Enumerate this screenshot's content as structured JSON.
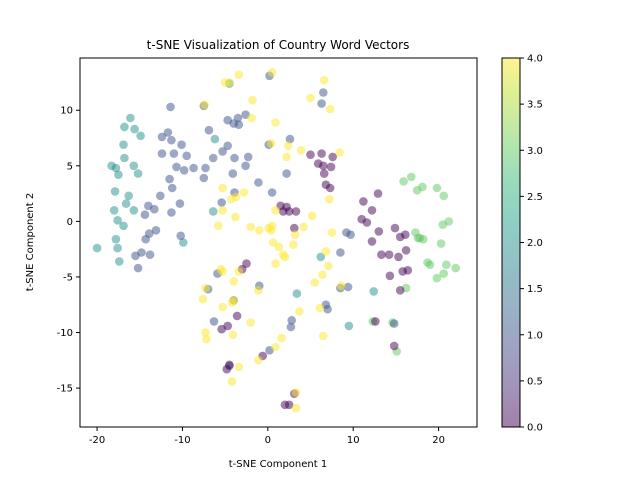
{
  "chart_data": {
    "type": "scatter",
    "title": "t-SNE Visualization of Country Word Vectors",
    "xlabel": "t-SNE Component 1",
    "ylabel": "t-SNE Component 2",
    "xlim": [
      -22,
      24.5
    ],
    "ylim": [
      -18.5,
      14.7
    ],
    "xticks": [
      -20,
      -10,
      0,
      10,
      20
    ],
    "yticks": [
      -15,
      -10,
      -5,
      0,
      5,
      10
    ],
    "colormap": "viridis",
    "alpha": 0.5,
    "grid": false,
    "legend": "none",
    "colorbar": {
      "label": "",
      "range": [
        0,
        4
      ],
      "ticks": [
        "0.0",
        "0.5",
        "1.0",
        "1.5",
        "2.0",
        "2.5",
        "3.0",
        "3.5",
        "4.0"
      ],
      "colors": [
        "#440154",
        "#482878",
        "#3e4989",
        "#31688e",
        "#26828e",
        "#1f9e89",
        "#35b779",
        "#6ece58",
        "#b5de2b",
        "#fde725"
      ]
    },
    "points": [
      {
        "x": -20.0,
        "y": -2.4,
        "c": 2
      },
      {
        "x": -18.3,
        "y": 5.0,
        "c": 2
      },
      {
        "x": -17.8,
        "y": 4.8,
        "c": 2
      },
      {
        "x": -17.5,
        "y": 4.2,
        "c": 2
      },
      {
        "x": -17.9,
        "y": 2.7,
        "c": 2
      },
      {
        "x": -18.0,
        "y": 1.0,
        "c": 2
      },
      {
        "x": -17.6,
        "y": 0.1,
        "c": 2
      },
      {
        "x": -16.9,
        "y": -0.4,
        "c": 2
      },
      {
        "x": -16.6,
        "y": 1.6,
        "c": 2
      },
      {
        "x": -16.3,
        "y": 2.3,
        "c": 2
      },
      {
        "x": -15.7,
        "y": 1.0,
        "c": 2
      },
      {
        "x": -16.8,
        "y": 5.7,
        "c": 2
      },
      {
        "x": -16.9,
        "y": 6.9,
        "c": 2
      },
      {
        "x": -16.8,
        "y": 8.5,
        "c": 2
      },
      {
        "x": -16.1,
        "y": 9.3,
        "c": 2
      },
      {
        "x": -15.6,
        "y": 8.3,
        "c": 2
      },
      {
        "x": -14.9,
        "y": 7.7,
        "c": 2
      },
      {
        "x": -15.7,
        "y": 5.0,
        "c": 2
      },
      {
        "x": -15.2,
        "y": 4.3,
        "c": 2
      },
      {
        "x": -17.8,
        "y": -1.6,
        "c": 2
      },
      {
        "x": -17.6,
        "y": -2.4,
        "c": 2
      },
      {
        "x": -17.4,
        "y": -3.6,
        "c": 2
      },
      {
        "x": -9.9,
        "y": -1.9,
        "c": 2
      },
      {
        "x": -6.2,
        "y": 7.4,
        "c": 2
      },
      {
        "x": -6.4,
        "y": 0.9,
        "c": 2
      },
      {
        "x": -4.5,
        "y": 12.4,
        "c": 2
      },
      {
        "x": 3.4,
        "y": -6.5,
        "c": 2
      },
      {
        "x": 6.2,
        "y": -3.2,
        "c": 2
      },
      {
        "x": 9.5,
        "y": -9.4,
        "c": 2
      },
      {
        "x": 12.4,
        "y": -6.3,
        "c": 2
      },
      {
        "x": 15.1,
        "y": -11.7,
        "c": 3
      },
      {
        "x": 14.6,
        "y": -9.1,
        "c": 3
      },
      {
        "x": 12.3,
        "y": -9.0,
        "c": 3
      },
      {
        "x": 16.8,
        "y": 4.0,
        "c": 3
      },
      {
        "x": 15.9,
        "y": 3.6,
        "c": 3
      },
      {
        "x": 17.5,
        "y": 2.8,
        "c": 3
      },
      {
        "x": 18.1,
        "y": 3.1,
        "c": 3
      },
      {
        "x": 19.8,
        "y": 3.0,
        "c": 3
      },
      {
        "x": 20.6,
        "y": 2.3,
        "c": 3
      },
      {
        "x": 21.2,
        "y": 0.0,
        "c": 3
      },
      {
        "x": 20.5,
        "y": -0.3,
        "c": 3
      },
      {
        "x": 17.3,
        "y": -1.0,
        "c": 3
      },
      {
        "x": 18.2,
        "y": -1.6,
        "c": 3
      },
      {
        "x": 17.8,
        "y": -1.5,
        "c": 3
      },
      {
        "x": 20.3,
        "y": -2.0,
        "c": 3
      },
      {
        "x": 18.7,
        "y": -3.7,
        "c": 3
      },
      {
        "x": 19.0,
        "y": -3.9,
        "c": 3
      },
      {
        "x": 20.9,
        "y": -3.9,
        "c": 3
      },
      {
        "x": 22.0,
        "y": -4.2,
        "c": 3
      },
      {
        "x": 20.6,
        "y": -4.7,
        "c": 3
      },
      {
        "x": 19.8,
        "y": -5.1,
        "c": 3
      },
      {
        "x": 16.2,
        "y": -6.0,
        "c": 3
      },
      {
        "x": 17.6,
        "y": -1.5,
        "c": 3
      },
      {
        "x": -14.8,
        "y": -2.8,
        "c": 1
      },
      {
        "x": -14.3,
        "y": -1.6,
        "c": 1
      },
      {
        "x": -13.9,
        "y": -1.1,
        "c": 1
      },
      {
        "x": -13.1,
        "y": -0.8,
        "c": 1
      },
      {
        "x": -14.4,
        "y": 0.6,
        "c": 1
      },
      {
        "x": -14.0,
        "y": 1.4,
        "c": 1
      },
      {
        "x": -13.3,
        "y": 1.1,
        "c": 1
      },
      {
        "x": -12.6,
        "y": 2.3,
        "c": 1
      },
      {
        "x": -11.5,
        "y": 3.8,
        "c": 1
      },
      {
        "x": -11.2,
        "y": 3.0,
        "c": 1
      },
      {
        "x": -11.3,
        "y": 0.8,
        "c": 1
      },
      {
        "x": -10.2,
        "y": -1.3,
        "c": 1
      },
      {
        "x": -12.4,
        "y": 6.1,
        "c": 1
      },
      {
        "x": -11.0,
        "y": 6.1,
        "c": 1
      },
      {
        "x": -11.3,
        "y": 7.3,
        "c": 1
      },
      {
        "x": -10.1,
        "y": 6.9,
        "c": 1
      },
      {
        "x": -9.5,
        "y": 5.9,
        "c": 1
      },
      {
        "x": -10.7,
        "y": 4.9,
        "c": 1
      },
      {
        "x": -9.8,
        "y": 4.6,
        "c": 1
      },
      {
        "x": -8.7,
        "y": 4.8,
        "c": 1
      },
      {
        "x": -12.4,
        "y": 7.6,
        "c": 1
      },
      {
        "x": -11.7,
        "y": 8.0,
        "c": 1
      },
      {
        "x": -11.4,
        "y": 10.3,
        "c": 1
      },
      {
        "x": -7.5,
        "y": 10.4,
        "c": 1
      },
      {
        "x": -6.9,
        "y": 8.2,
        "c": 1
      },
      {
        "x": -4.7,
        "y": 9.1,
        "c": 1
      },
      {
        "x": -4.0,
        "y": 8.8,
        "c": 1
      },
      {
        "x": -3.5,
        "y": 9.3,
        "c": 1
      },
      {
        "x": -3.4,
        "y": 8.7,
        "c": 1
      },
      {
        "x": -2.6,
        "y": 9.6,
        "c": 1
      },
      {
        "x": -5.3,
        "y": 6.3,
        "c": 1
      },
      {
        "x": -4.7,
        "y": 6.8,
        "c": 1
      },
      {
        "x": -3.9,
        "y": 5.7,
        "c": 1
      },
      {
        "x": -2.3,
        "y": 5.8,
        "c": 1
      },
      {
        "x": -2.6,
        "y": 5.0,
        "c": 1
      },
      {
        "x": -4.1,
        "y": 4.3,
        "c": 1
      },
      {
        "x": -3.9,
        "y": 2.6,
        "c": 1
      },
      {
        "x": -5.4,
        "y": 1.7,
        "c": 1
      },
      {
        "x": -6.4,
        "y": 5.7,
        "c": 1
      },
      {
        "x": -7.3,
        "y": 4.8,
        "c": 1
      },
      {
        "x": -7.5,
        "y": 3.9,
        "c": 1
      },
      {
        "x": -13.8,
        "y": -3.0,
        "c": 1
      },
      {
        "x": -15.2,
        "y": -4.2,
        "c": 1
      },
      {
        "x": -15.5,
        "y": -3.1,
        "c": 1
      },
      {
        "x": -10.3,
        "y": 1.6,
        "c": 1
      },
      {
        "x": -1.1,
        "y": 3.5,
        "c": 1
      },
      {
        "x": 0.5,
        "y": 2.6,
        "c": 1
      },
      {
        "x": 0.1,
        "y": 6.9,
        "c": 1
      },
      {
        "x": 2.6,
        "y": 7.4,
        "c": 1
      },
      {
        "x": 2.2,
        "y": 4.3,
        "c": 1
      },
      {
        "x": 0.2,
        "y": 13.1,
        "c": 1
      },
      {
        "x": 6.5,
        "y": 11.6,
        "c": 1
      },
      {
        "x": 6.3,
        "y": 10.6,
        "c": 1
      },
      {
        "x": 9.2,
        "y": -1.0,
        "c": 1
      },
      {
        "x": 9.7,
        "y": -1.2,
        "c": 1
      },
      {
        "x": 8.5,
        "y": -2.8,
        "c": 1
      },
      {
        "x": 6.8,
        "y": -7.5,
        "c": 1
      },
      {
        "x": 7.0,
        "y": -7.9,
        "c": 1
      },
      {
        "x": 9.4,
        "y": -5.9,
        "c": 1
      },
      {
        "x": 8.5,
        "y": -6.0,
        "c": 1
      },
      {
        "x": 2.8,
        "y": -8.9,
        "c": 1
      },
      {
        "x": 2.7,
        "y": -9.5,
        "c": 1
      },
      {
        "x": 0.2,
        "y": -11.6,
        "c": 1
      },
      {
        "x": -1.0,
        "y": -5.8,
        "c": 1
      },
      {
        "x": -5.9,
        "y": -4.7,
        "c": 1
      },
      {
        "x": -7.0,
        "y": -6.1,
        "c": 1
      },
      {
        "x": -6.3,
        "y": -9.0,
        "c": 1
      },
      {
        "x": -4.5,
        "y": -13.0,
        "c": 1
      },
      {
        "x": -4.0,
        "y": -7.1,
        "c": 1
      },
      {
        "x": 14.8,
        "y": -9.2,
        "c": 1
      },
      {
        "x": 5.0,
        "y": 6.0,
        "c": 0
      },
      {
        "x": 5.9,
        "y": 5.2,
        "c": 0
      },
      {
        "x": 6.3,
        "y": 6.1,
        "c": 0
      },
      {
        "x": 6.5,
        "y": 5.0,
        "c": 0
      },
      {
        "x": 6.6,
        "y": 4.3,
        "c": 0
      },
      {
        "x": 6.8,
        "y": 3.3,
        "c": 0
      },
      {
        "x": 7.3,
        "y": 3.0,
        "c": 0
      },
      {
        "x": 7.6,
        "y": 5.8,
        "c": 0
      },
      {
        "x": 7.4,
        "y": 4.9,
        "c": 0
      },
      {
        "x": 1.5,
        "y": 1.4,
        "c": 0
      },
      {
        "x": 1.8,
        "y": 0.9,
        "c": 0
      },
      {
        "x": 2.5,
        "y": 0.9,
        "c": 0
      },
      {
        "x": 3.3,
        "y": 0.9,
        "c": 0
      },
      {
        "x": 3.1,
        "y": -0.6,
        "c": 0
      },
      {
        "x": 2.2,
        "y": 1.3,
        "c": 0
      },
      {
        "x": 11.0,
        "y": 0.2,
        "c": 0
      },
      {
        "x": 11.6,
        "y": -0.1,
        "c": 0
      },
      {
        "x": 12.2,
        "y": 1.0,
        "c": 0
      },
      {
        "x": 12.9,
        "y": 2.5,
        "c": 0
      },
      {
        "x": 11.2,
        "y": 1.8,
        "c": 0
      },
      {
        "x": 12.2,
        "y": -1.8,
        "c": 0
      },
      {
        "x": 13.0,
        "y": -0.9,
        "c": 0
      },
      {
        "x": 13.3,
        "y": -3.0,
        "c": 0
      },
      {
        "x": 14.2,
        "y": -3.0,
        "c": 0
      },
      {
        "x": 14.9,
        "y": -0.6,
        "c": 0
      },
      {
        "x": 15.5,
        "y": -1.4,
        "c": 0
      },
      {
        "x": 16.1,
        "y": -1.2,
        "c": 0
      },
      {
        "x": 16.2,
        "y": -2.6,
        "c": 0
      },
      {
        "x": 15.3,
        "y": -3.2,
        "c": 0
      },
      {
        "x": 14.3,
        "y": -4.9,
        "c": 0
      },
      {
        "x": 15.8,
        "y": -4.5,
        "c": 0
      },
      {
        "x": 16.4,
        "y": -4.4,
        "c": 0
      },
      {
        "x": 15.5,
        "y": -6.2,
        "c": 0
      },
      {
        "x": 14.8,
        "y": -11.2,
        "c": 0
      },
      {
        "x": 12.6,
        "y": -9.0,
        "c": 0
      },
      {
        "x": -4.7,
        "y": -9.4,
        "c": 0
      },
      {
        "x": -5.4,
        "y": -9.7,
        "c": 0
      },
      {
        "x": -3.6,
        "y": -8.5,
        "c": 0
      },
      {
        "x": -2.5,
        "y": -3.8,
        "c": 0
      },
      {
        "x": -3.0,
        "y": -4.3,
        "c": 0
      },
      {
        "x": -4.5,
        "y": -12.9,
        "c": 0
      },
      {
        "x": -4.8,
        "y": -13.3,
        "c": 0
      },
      {
        "x": -0.6,
        "y": -12.1,
        "c": 0
      },
      {
        "x": 2.0,
        "y": -16.5,
        "c": 0
      },
      {
        "x": 2.5,
        "y": -16.5,
        "c": 0
      },
      {
        "x": 3.1,
        "y": -15.5,
        "c": 0
      },
      {
        "x": -7.4,
        "y": 10.5,
        "c": 4
      },
      {
        "x": -5.0,
        "y": 12.5,
        "c": 4
      },
      {
        "x": -4.5,
        "y": 12.5,
        "c": 4
      },
      {
        "x": -3.4,
        "y": 13.2,
        "c": 4
      },
      {
        "x": -1.8,
        "y": 10.9,
        "c": 4
      },
      {
        "x": -1.9,
        "y": 9.3,
        "c": 4
      },
      {
        "x": 0.5,
        "y": 13.4,
        "c": 4
      },
      {
        "x": 0.9,
        "y": 8.9,
        "c": 4
      },
      {
        "x": 0.4,
        "y": 7.0,
        "c": 4
      },
      {
        "x": 2.4,
        "y": 6.8,
        "c": 4
      },
      {
        "x": 2.2,
        "y": 5.8,
        "c": 4
      },
      {
        "x": 3.9,
        "y": 6.4,
        "c": 4
      },
      {
        "x": 5.0,
        "y": 11.1,
        "c": 4
      },
      {
        "x": 6.6,
        "y": 12.7,
        "c": 4
      },
      {
        "x": 7.3,
        "y": 10.1,
        "c": 4
      },
      {
        "x": 8.4,
        "y": 6.2,
        "c": 4
      },
      {
        "x": 7.2,
        "y": 2.0,
        "c": 4
      },
      {
        "x": -5.3,
        "y": 3.0,
        "c": 4
      },
      {
        "x": -4.3,
        "y": 2.0,
        "c": 4
      },
      {
        "x": -3.7,
        "y": 2.2,
        "c": 4
      },
      {
        "x": -2.8,
        "y": 2.6,
        "c": 4
      },
      {
        "x": -3.8,
        "y": 0.4,
        "c": 4
      },
      {
        "x": -5.3,
        "y": 1.0,
        "c": 4
      },
      {
        "x": -5.8,
        "y": -0.4,
        "c": 4
      },
      {
        "x": -1.0,
        "y": -0.8,
        "c": 4
      },
      {
        "x": 0.4,
        "y": -0.8,
        "c": 4
      },
      {
        "x": 0.1,
        "y": -0.6,
        "c": 4
      },
      {
        "x": 0.6,
        "y": -1.9,
        "c": 4
      },
      {
        "x": 1.3,
        "y": -2.3,
        "c": 4
      },
      {
        "x": 2.0,
        "y": -3.2,
        "c": 4
      },
      {
        "x": 0.9,
        "y": -3.8,
        "c": 4
      },
      {
        "x": -3.4,
        "y": -4.5,
        "c": 4
      },
      {
        "x": -5.5,
        "y": -4.3,
        "c": 4
      },
      {
        "x": -5.3,
        "y": -4.5,
        "c": 4
      },
      {
        "x": -7.3,
        "y": -6.0,
        "c": 4
      },
      {
        "x": -7.6,
        "y": -7.0,
        "c": 4
      },
      {
        "x": -4.0,
        "y": -5.4,
        "c": 4
      },
      {
        "x": -5.3,
        "y": -7.7,
        "c": 4
      },
      {
        "x": -4.2,
        "y": -7.3,
        "c": 4
      },
      {
        "x": -7.3,
        "y": -10.0,
        "c": 4
      },
      {
        "x": -7.2,
        "y": -10.6,
        "c": 4
      },
      {
        "x": -4.1,
        "y": -10.2,
        "c": 4
      },
      {
        "x": -2.0,
        "y": -9.1,
        "c": 4
      },
      {
        "x": -1.1,
        "y": -12.5,
        "c": 4
      },
      {
        "x": 0.9,
        "y": -11.3,
        "c": 4
      },
      {
        "x": 1.6,
        "y": -10.5,
        "c": 4
      },
      {
        "x": -3.4,
        "y": -13.1,
        "c": 4
      },
      {
        "x": -4.2,
        "y": -14.4,
        "c": 4
      },
      {
        "x": 3.3,
        "y": -15.4,
        "c": 4
      },
      {
        "x": 3.3,
        "y": -16.8,
        "c": 4
      },
      {
        "x": 3.7,
        "y": -8.1,
        "c": 4
      },
      {
        "x": 5.5,
        "y": -5.5,
        "c": 4
      },
      {
        "x": 6.1,
        "y": -7.8,
        "c": 4
      },
      {
        "x": 6.5,
        "y": -10.3,
        "c": 4
      },
      {
        "x": 7.1,
        "y": -4.0,
        "c": 4
      },
      {
        "x": 6.4,
        "y": -4.8,
        "c": 4
      },
      {
        "x": 6.8,
        "y": -2.7,
        "c": 4
      },
      {
        "x": 7.5,
        "y": -1.0,
        "c": 4
      },
      {
        "x": 8.6,
        "y": -5.8,
        "c": 4
      },
      {
        "x": 3.2,
        "y": -1.2,
        "c": 4
      },
      {
        "x": 3.0,
        "y": -2.1,
        "c": 4
      },
      {
        "x": 4.2,
        "y": -0.5,
        "c": 4
      },
      {
        "x": 1.8,
        "y": -3.0,
        "c": 4
      },
      {
        "x": -1.1,
        "y": -6.2,
        "c": 4
      },
      {
        "x": -4.0,
        "y": -7.1,
        "c": 4
      },
      {
        "x": 5.2,
        "y": 0.5,
        "c": 4
      },
      {
        "x": 0.9,
        "y": 1.0,
        "c": 4
      },
      {
        "x": -2.0,
        "y": -0.5,
        "c": 4
      },
      {
        "x": 0.5,
        "y": -0.4,
        "c": 4
      }
    ]
  }
}
